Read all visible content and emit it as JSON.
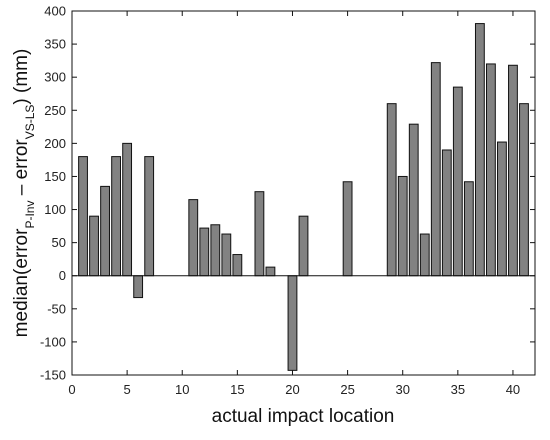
{
  "chart_data": {
    "type": "bar",
    "xlabel": "actual impact location",
    "ylabel": {
      "prefix": "median(error",
      "sub1": "P-Inv",
      "mid": " – error",
      "sub2": "VS-LS",
      "suffix": ") (mm)"
    },
    "xlim": [
      0,
      42
    ],
    "ylim": [
      -150,
      400
    ],
    "xticks": [
      0,
      5,
      10,
      15,
      20,
      25,
      30,
      35,
      40
    ],
    "yticks": [
      -150,
      -100,
      -50,
      0,
      50,
      100,
      150,
      200,
      250,
      300,
      350,
      400
    ],
    "grid": false,
    "bar_color": "#828282",
    "x": [
      1,
      2,
      3,
      4,
      5,
      6,
      7,
      8,
      9,
      10,
      11,
      12,
      13,
      14,
      15,
      16,
      17,
      18,
      19,
      20,
      21,
      22,
      23,
      24,
      25,
      26,
      27,
      28,
      29,
      30,
      31,
      32,
      33,
      34,
      35,
      36,
      37,
      38,
      39,
      40,
      41
    ],
    "values": [
      180,
      90,
      135,
      180,
      200,
      -33,
      180,
      0,
      0,
      0,
      115,
      72,
      77,
      63,
      32,
      0,
      127,
      13,
      0,
      -143,
      90,
      0,
      0,
      0,
      142,
      0,
      0,
      0,
      260,
      150,
      229,
      63,
      322,
      190,
      285,
      142,
      381,
      320,
      202,
      318,
      260
    ]
  }
}
